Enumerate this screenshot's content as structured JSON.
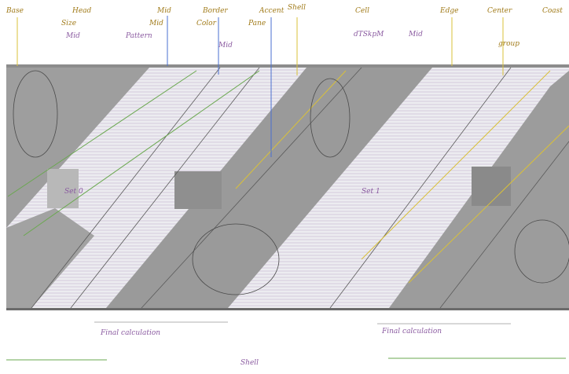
{
  "diagram": {
    "header_labels": [
      "Base",
      "Head",
      "Mid",
      "Border",
      "Accent",
      "Shell",
      "Cell",
      "Edge",
      "Center",
      "Coast"
    ],
    "header_sublabels": [
      "Size",
      "Mid",
      "Color",
      "Pane"
    ],
    "label_text": {
      "lead_mid": "Mid",
      "lead_pattern": "Pattern",
      "mid_small": "Mid",
      "spool_stagger": "dTSkpM",
      "mid_group": "Mid",
      "label_group": "group",
      "sub_a": "Set 0",
      "sub_b": "Set 1",
      "bottom_left": "Final calculation",
      "bottom_center": "Shell",
      "bottom_right": "Final calculation"
    },
    "colors": {
      "band": "#9e9e9e",
      "band_dark": "#7f7f7f",
      "panel": "#d9d9d9",
      "stripe": "#e8e4ec",
      "yellow": "#d8c03a",
      "green": "#6aa84f",
      "blue": "#4a6fd0",
      "purple": "#8e5ab0"
    }
  }
}
